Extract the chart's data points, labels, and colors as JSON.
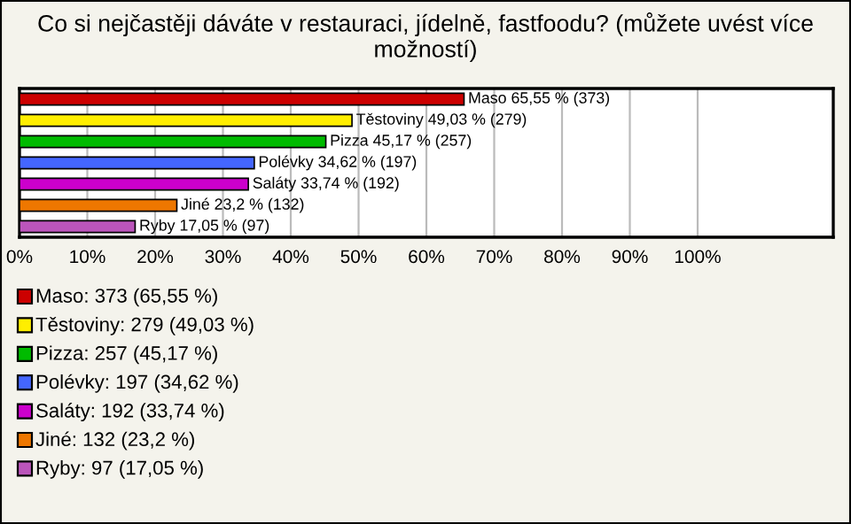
{
  "chart_data": {
    "type": "bar",
    "orientation": "horizontal",
    "title": "Co si nejčastěji dáváte v restauraci, jídelně, fastfoodu? (můžete uvést více možností)",
    "categories": [
      null,
      null,
      null,
      null,
      null,
      null,
      null
    ],
    "values": [
      65.55,
      49.03,
      45.17,
      34.62,
      33.74,
      23.2,
      17.05
    ],
    "colors": [
      "#cc0000",
      "#ffee00",
      "#00bb00",
      "#4466ff",
      "#cc00cc",
      "#ee7700",
      "#bb55bb"
    ],
    "value_labels": [
      "Maso 65,55 % (373)",
      "Těstoviny 49,03 % (279)",
      "Pizza 45,17 % (257)",
      "Polévky 34,62 % (197)",
      "Saláty 33,74 % (192)",
      "Jiné 23,2 % (132)",
      "Ryby 17,05 % (97)"
    ],
    "xlim": [
      0,
      120
    ],
    "xticks": [
      {
        "value": 0,
        "label": "0%"
      },
      {
        "value": 10,
        "label": "10%"
      },
      {
        "value": 20,
        "label": "20%"
      },
      {
        "value": 30,
        "label": "30%"
      },
      {
        "value": 40,
        "label": "40%"
      },
      {
        "value": 50,
        "label": "50%"
      },
      {
        "value": 60,
        "label": "60%"
      },
      {
        "value": 70,
        "label": "70%"
      },
      {
        "value": 80,
        "label": "80%"
      },
      {
        "value": 90,
        "label": "90%"
      },
      {
        "value": 100,
        "label": "100%"
      }
    ],
    "grid": "x",
    "tick_labels": "x",
    "annotations": [
      "Maso: 373 (65,55 %)",
      "Těstoviny: 279 (49,03 %)",
      "Pizza: 257 (45,17 %)",
      "Polévky: 197 (34,62 %)",
      "Saláty: 192 (33,74 %)",
      "Jiné: 132 (23,2 %)",
      "Ryby: 97 (17,05 %)"
    ]
  }
}
